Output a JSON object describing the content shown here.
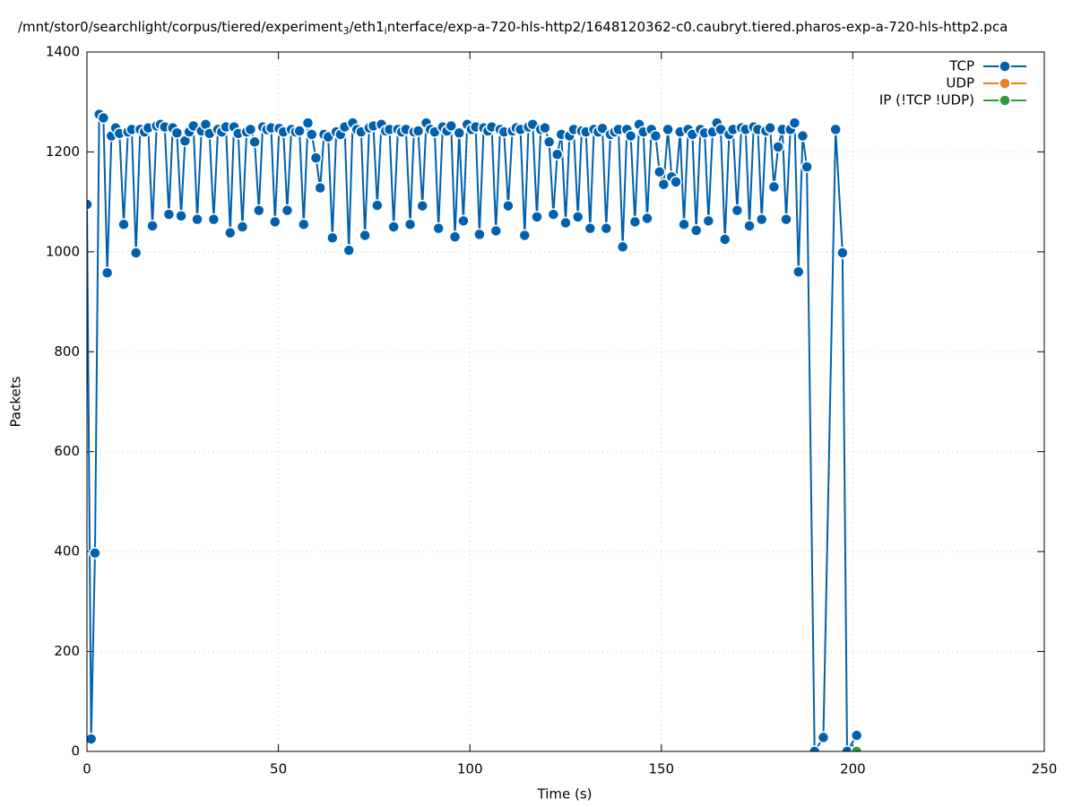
{
  "chart_data": {
    "type": "line",
    "title": [
      "/mnt/stor0/searchlight/corpus/tiered/experiment",
      "3",
      "/eth1",
      "i",
      "nterface/exp-a-720-hls-http2/1648120362-c0.caubryt.tiered.pharos-exp-a-720-hls-http2.pca"
    ],
    "xlabel": "Time (s)",
    "ylabel": "Packets",
    "xlim": [
      0,
      250
    ],
    "xticks": [
      0,
      50,
      100,
      150,
      200,
      250
    ],
    "ylim": [
      0,
      1400
    ],
    "yticks": [
      0,
      200,
      400,
      600,
      800,
      1000,
      1200,
      1400
    ],
    "grid": true,
    "legend": "top-right",
    "series": [
      {
        "name": "TCP",
        "color": "#0060ad",
        "x": [
          0,
          1.1,
          2.1,
          3.2,
          4.3,
          5.3,
          6.4,
          7.5,
          8.5,
          9.6,
          10.7,
          11.7,
          12.8,
          13.9,
          15,
          16,
          17.1,
          18.2,
          19.2,
          20.3,
          21.4,
          22.4,
          23.5,
          24.6,
          25.6,
          26.7,
          27.8,
          28.8,
          29.9,
          31,
          32,
          33.1,
          34.2,
          35.2,
          36.3,
          37.4,
          38.4,
          39.5,
          40.6,
          41.7,
          42.7,
          43.8,
          44.9,
          45.9,
          47,
          48.1,
          49.1,
          50.2,
          51.3,
          52.3,
          53.4,
          54.5,
          55.5,
          56.6,
          57.7,
          58.7,
          59.8,
          60.9,
          61.9,
          63,
          64.1,
          65.1,
          66.2,
          67.3,
          68.4,
          69.4,
          70.5,
          71.6,
          72.6,
          73.7,
          74.8,
          75.8,
          76.9,
          78,
          79,
          80.1,
          81.2,
          82.2,
          83.3,
          84.4,
          85.4,
          86.5,
          87.6,
          88.6,
          89.7,
          90.8,
          91.8,
          92.9,
          94,
          95.1,
          96.1,
          97.2,
          98.3,
          99.3,
          100.4,
          101.5,
          102.5,
          103.6,
          104.7,
          105.7,
          106.8,
          107.9,
          108.9,
          110,
          111.1,
          112.1,
          113.2,
          114.3,
          115.3,
          116.4,
          117.5,
          118.5,
          119.6,
          120.7,
          121.8,
          122.8,
          123.9,
          125,
          126,
          127.1,
          128.2,
          129.2,
          130.3,
          131.4,
          132.4,
          133.5,
          134.6,
          135.6,
          136.7,
          137.8,
          138.8,
          139.9,
          141,
          142,
          143.1,
          144.2,
          145.3,
          146.3,
          147.4,
          148.5,
          149.5,
          150.6,
          151.7,
          152.7,
          153.8,
          154.9,
          155.9,
          157,
          158.1,
          159.1,
          160.2,
          161.3,
          162.3,
          163.4,
          164.5,
          165.5,
          166.6,
          167.7,
          168.7,
          169.8,
          170.9,
          172,
          173,
          174.1,
          175.2,
          176.2,
          177.3,
          178.4,
          179.4,
          180.5,
          181.6,
          182.6,
          183.7,
          184.8,
          185.8,
          186.9,
          188,
          190,
          192.3,
          195.5,
          197.3,
          198.5,
          201
        ],
        "values": [
          1095,
          25,
          397,
          1275,
          1268,
          958,
          1232,
          1248,
          1237,
          1055,
          1240,
          1245,
          998,
          1245,
          1240,
          1248,
          1052,
          1252,
          1255,
          1250,
          1075,
          1248,
          1238,
          1072,
          1222,
          1240,
          1252,
          1065,
          1242,
          1255,
          1237,
          1065,
          1245,
          1240,
          1250,
          1038,
          1250,
          1237,
          1050,
          1240,
          1245,
          1220,
          1083,
          1250,
          1245,
          1248,
          1060,
          1247,
          1240,
          1083,
          1245,
          1240,
          1242,
          1055,
          1258,
          1235,
          1188,
          1128,
          1235,
          1230,
          1028,
          1240,
          1235,
          1250,
          1003,
          1258,
          1245,
          1240,
          1033,
          1248,
          1252,
          1093,
          1255,
          1242,
          1245,
          1050,
          1245,
          1240,
          1245,
          1055,
          1240,
          1242,
          1092,
          1258,
          1245,
          1240,
          1047,
          1250,
          1242,
          1252,
          1030,
          1238,
          1062,
          1255,
          1245,
          1250,
          1035,
          1248,
          1242,
          1250,
          1042,
          1245,
          1240,
          1092,
          1242,
          1248,
          1245,
          1033,
          1250,
          1255,
          1070,
          1245,
          1248,
          1220,
          1075,
          1195,
          1235,
          1058,
          1232,
          1245,
          1070,
          1242,
          1240,
          1047,
          1245,
          1240,
          1247,
          1047,
          1235,
          1240,
          1245,
          1010,
          1245,
          1232,
          1060,
          1255,
          1240,
          1067,
          1245,
          1232,
          1160,
          1135,
          1245,
          1150,
          1140,
          1240,
          1055,
          1245,
          1235,
          1043,
          1245,
          1238,
          1062,
          1240,
          1258,
          1245,
          1025,
          1235,
          1245,
          1083,
          1248,
          1245,
          1052,
          1250,
          1245,
          1065,
          1242,
          1248,
          1130,
          1210,
          1245,
          1065,
          1245,
          1258,
          960,
          1232,
          1170,
          0,
          28,
          1245,
          998,
          0,
          32
        ]
      },
      {
        "name": "UDP",
        "color": "#ef7f1a",
        "x": [],
        "values": []
      },
      {
        "name": "IP (!TCP  !UDP)",
        "color": "#2a9e3a",
        "x": [
          201
        ],
        "values": [
          0
        ]
      }
    ]
  }
}
